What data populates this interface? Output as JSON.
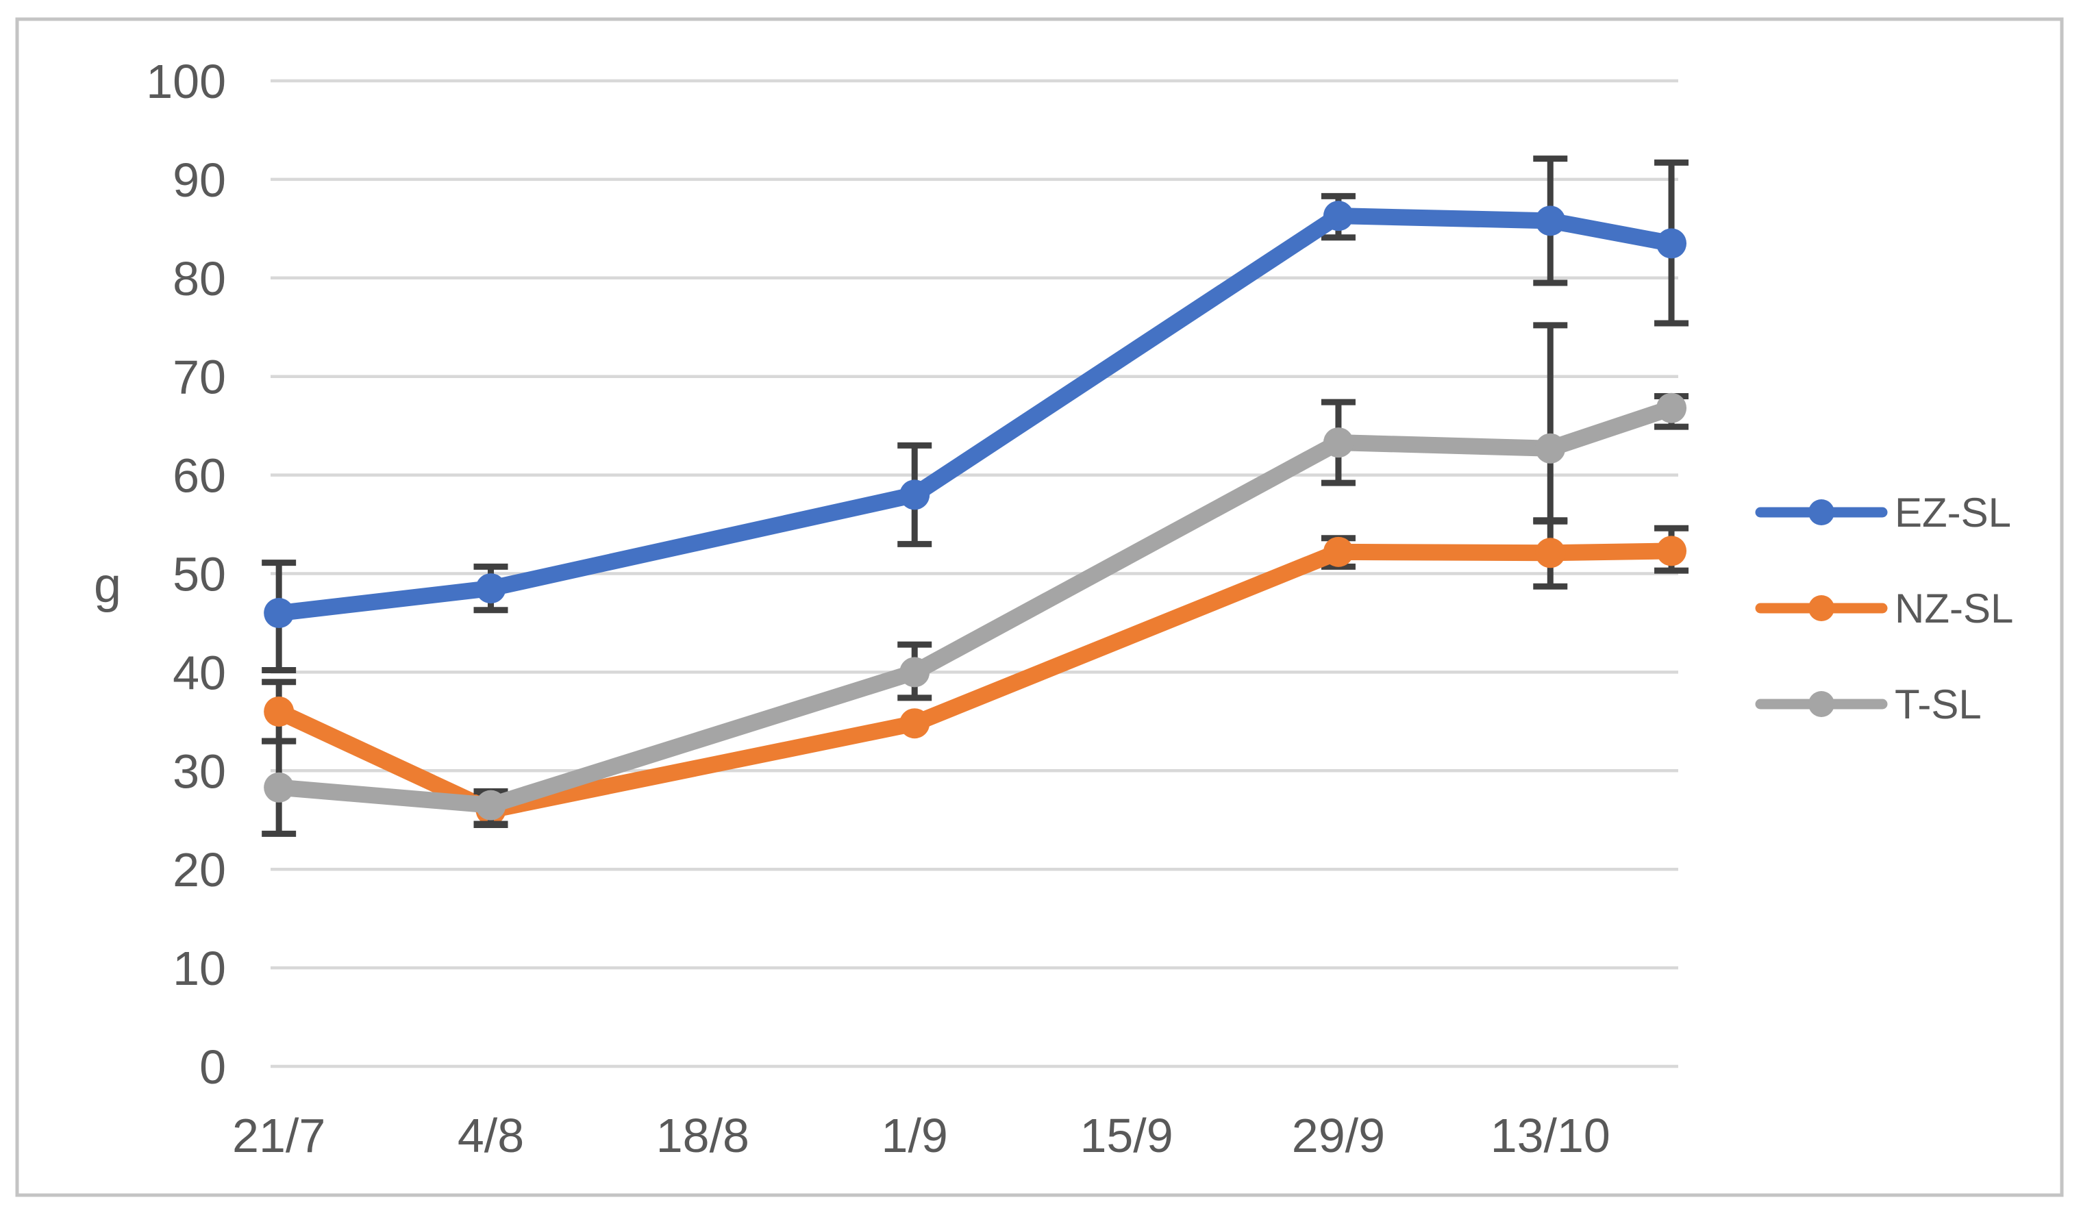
{
  "chart_data": {
    "type": "line",
    "title": "",
    "ylabel": "g",
    "xlabel": "",
    "ylim": [
      0,
      100
    ],
    "ytick_step": 10,
    "yticks": [
      100,
      90,
      80,
      70,
      60,
      50,
      40,
      30,
      20,
      10,
      0
    ],
    "grid": true,
    "legend_position": "right",
    "x_axis": {
      "tick_labels": [
        "21/7",
        "4/8",
        "18/8",
        "1/9",
        "15/9",
        "29/9",
        "13/10"
      ],
      "tick_day_offsets": [
        0,
        14,
        28,
        42,
        56,
        70,
        84
      ],
      "day_range": [
        -0.55,
        92.45
      ]
    },
    "series": [
      {
        "name": "EZ-SL",
        "color": "#4472C4",
        "x_days": [
          0,
          14,
          42,
          70,
          84,
          92
        ],
        "values": [
          46.0,
          48.5,
          58.0,
          86.3,
          85.8,
          83.5
        ],
        "err_up": [
          5.1,
          2.2,
          5.0,
          2.0,
          6.3,
          8.2
        ],
        "err_down": [
          5.8,
          2.2,
          5.0,
          2.2,
          6.3,
          8.1
        ]
      },
      {
        "name": "NZ-SL",
        "color": "#ED7D31",
        "x_days": [
          0,
          14,
          42,
          70,
          84,
          92
        ],
        "values": [
          36.0,
          26.0,
          34.8,
          52.2,
          52.1,
          52.3
        ],
        "err_up": [
          3.0,
          1.8,
          0,
          1.4,
          3.3,
          2.3
        ],
        "err_down": [
          3.0,
          1.5,
          0,
          1.5,
          3.4,
          2.0
        ]
      },
      {
        "name": "T-SL",
        "color": "#A5A5A5",
        "x_days": [
          0,
          14,
          42,
          70,
          84,
          92
        ],
        "values": [
          28.3,
          26.5,
          40.0,
          63.3,
          62.7,
          66.8
        ],
        "err_up": [
          4.7,
          1.4,
          2.8,
          4.1,
          12.5,
          1.2
        ],
        "err_down": [
          4.7,
          1.9,
          2.6,
          4.1,
          7.4,
          1.9
        ]
      }
    ],
    "legend_items": [
      "EZ-SL",
      "NZ-SL",
      "T-SL"
    ]
  },
  "colors": {
    "gridline": "#D8D8D8",
    "tick_text": "#595959",
    "axis_title_text": "#595959",
    "error_bar": "#404040",
    "frame_border": "#C4C4C4",
    "background": "#FFFFFF"
  }
}
